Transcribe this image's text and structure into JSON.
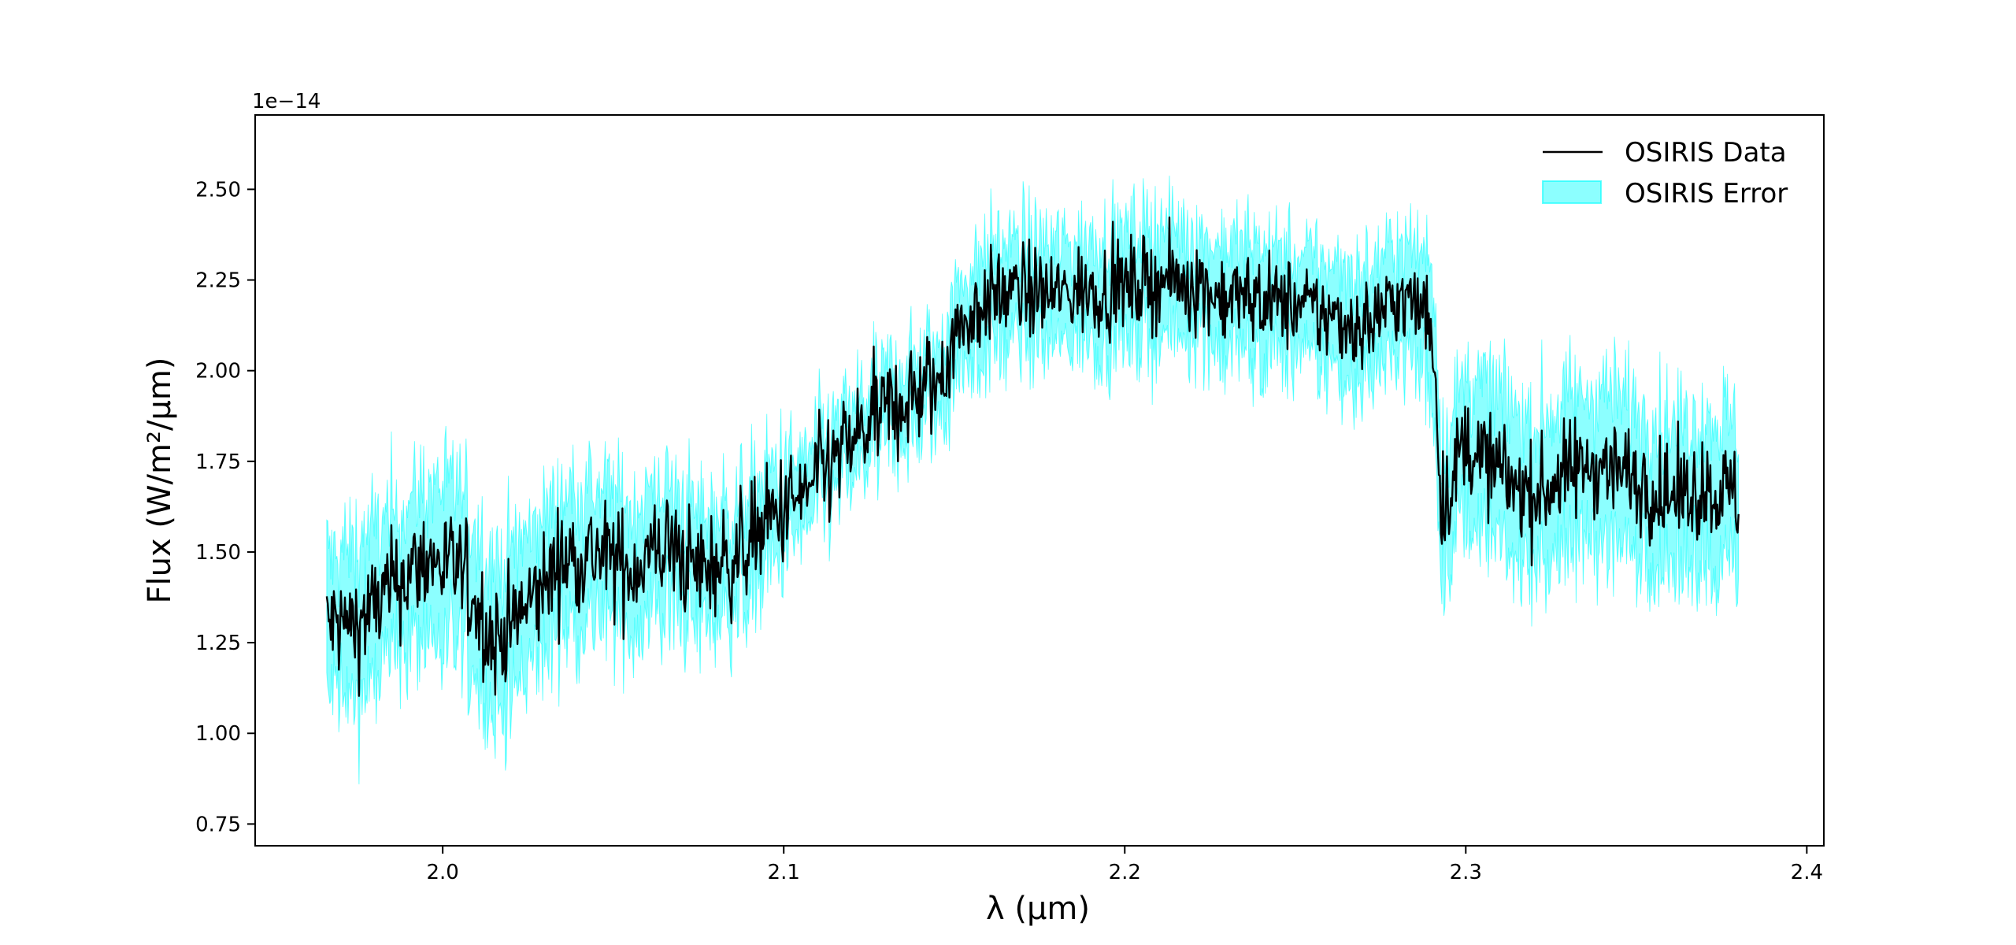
{
  "chart_data": {
    "type": "line",
    "title": "",
    "xlabel": "λ (μm)",
    "ylabel": "Flux (W/m²/μm)",
    "y_offset_text": "1e−14",
    "xlim": [
      1.945,
      2.405
    ],
    "ylim": [
      0.69,
      2.705
    ],
    "y_multiplier": 1e-14,
    "x_ticks": [
      2.0,
      2.1,
      2.2,
      2.3,
      2.4
    ],
    "x_tick_labels": [
      "2.0",
      "2.1",
      "2.2",
      "2.3",
      "2.4"
    ],
    "y_ticks": [
      0.75,
      1.0,
      1.25,
      1.5,
      1.75,
      2.0,
      2.25,
      2.5
    ],
    "y_tick_labels": [
      "0.75",
      "1.00",
      "1.25",
      "1.50",
      "1.75",
      "2.00",
      "2.25",
      "2.50"
    ],
    "grid": false,
    "legend_position": "top-right",
    "series": [
      {
        "name": "OSIRIS Data",
        "kind": "line",
        "color": "#000000",
        "x": [
          1.966,
          1.975,
          1.985,
          1.995,
          2.005,
          2.015,
          2.025,
          2.035,
          2.045,
          2.055,
          2.065,
          2.075,
          2.085,
          2.095,
          2.105,
          2.115,
          2.125,
          2.135,
          2.145,
          2.15,
          2.16,
          2.17,
          2.18,
          2.19,
          2.2,
          2.21,
          2.22,
          2.23,
          2.24,
          2.25,
          2.26,
          2.27,
          2.28,
          2.29,
          2.293,
          2.3,
          2.31,
          2.32,
          2.33,
          2.34,
          2.35,
          2.36,
          2.37,
          2.38
        ],
        "values": [
          1.3,
          1.3,
          1.4,
          1.48,
          1.45,
          1.25,
          1.35,
          1.48,
          1.5,
          1.45,
          1.52,
          1.45,
          1.48,
          1.58,
          1.65,
          1.75,
          1.85,
          1.92,
          1.96,
          2.1,
          2.2,
          2.22,
          2.21,
          2.22,
          2.23,
          2.25,
          2.24,
          2.2,
          2.2,
          2.18,
          2.15,
          2.12,
          2.2,
          2.15,
          1.62,
          1.8,
          1.72,
          1.65,
          1.72,
          1.75,
          1.7,
          1.65,
          1.68,
          1.65
        ]
      },
      {
        "name": "OSIRIS Error",
        "kind": "band",
        "color": "#00ffff",
        "x": [
          1.966,
          1.975,
          1.985,
          1.995,
          2.005,
          2.015,
          2.025,
          2.035,
          2.045,
          2.055,
          2.065,
          2.075,
          2.085,
          2.095,
          2.105,
          2.115,
          2.125,
          2.135,
          2.145,
          2.15,
          2.16,
          2.17,
          2.18,
          2.19,
          2.2,
          2.21,
          2.22,
          2.23,
          2.24,
          2.25,
          2.26,
          2.27,
          2.28,
          2.29,
          2.293,
          2.3,
          2.31,
          2.32,
          2.33,
          2.34,
          2.35,
          2.36,
          2.37,
          2.38
        ],
        "lower": [
          1.12,
          1.1,
          1.2,
          1.28,
          1.22,
          1.05,
          1.15,
          1.3,
          1.32,
          1.28,
          1.35,
          1.3,
          1.34,
          1.45,
          1.55,
          1.65,
          1.76,
          1.82,
          1.86,
          1.98,
          2.06,
          2.08,
          2.08,
          2.08,
          2.08,
          2.1,
          2.1,
          2.05,
          2.05,
          2.04,
          2.0,
          1.98,
          2.05,
          1.98,
          1.45,
          1.6,
          1.52,
          1.45,
          1.52,
          1.55,
          1.5,
          1.45,
          1.48,
          1.45
        ],
        "upper": [
          1.5,
          1.52,
          1.6,
          1.68,
          1.66,
          1.45,
          1.55,
          1.66,
          1.68,
          1.62,
          1.7,
          1.6,
          1.62,
          1.72,
          1.75,
          1.85,
          1.95,
          2.02,
          2.06,
          2.22,
          2.34,
          2.36,
          2.35,
          2.36,
          2.37,
          2.4,
          2.38,
          2.34,
          2.35,
          2.32,
          2.3,
          2.27,
          2.36,
          2.32,
          1.8,
          1.98,
          1.92,
          1.85,
          1.92,
          1.95,
          1.9,
          1.85,
          1.88,
          1.85
        ]
      }
    ]
  }
}
